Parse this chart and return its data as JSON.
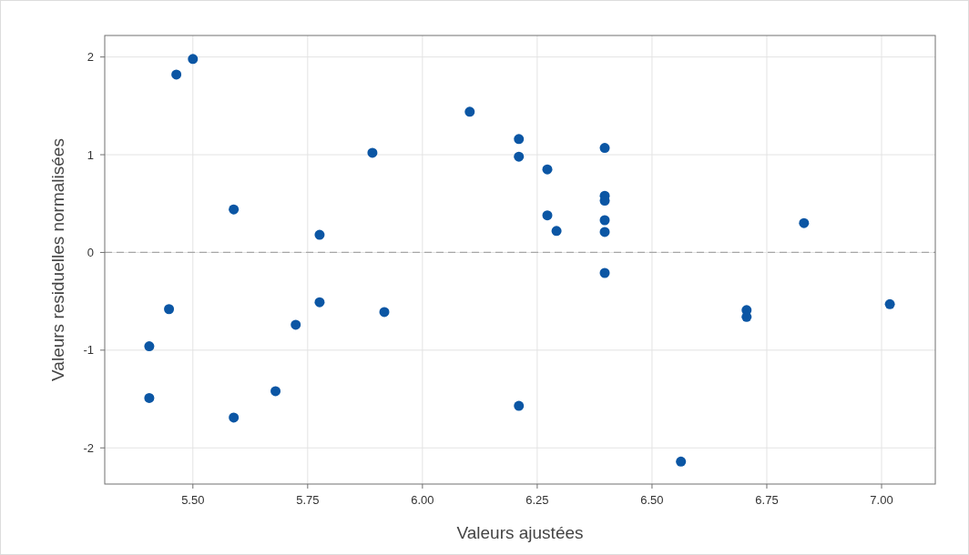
{
  "chart_data": {
    "type": "scatter",
    "xlabel": "Valeurs ajustées",
    "ylabel": "Valeurs residuelles normalisées",
    "xlim": [
      5.308,
      7.117
    ],
    "xticks": [
      {
        "value": 5.5,
        "label": "5.50"
      },
      {
        "value": 5.75,
        "label": "5.75"
      },
      {
        "value": 6,
        "label": "6.00"
      },
      {
        "value": 6.25,
        "label": "6.25"
      },
      {
        "value": 6.5,
        "label": "6.50"
      },
      {
        "value": 6.75,
        "label": "6.75"
      },
      {
        "value": 7,
        "label": "7.00"
      }
    ],
    "ylim": [
      -2.37,
      2.22
    ],
    "yticks": [
      -2,
      -1,
      0,
      1,
      2
    ],
    "grid": true,
    "marker": "circle",
    "ref_lines": [
      {
        "axis": "y",
        "value": 0,
        "color": "#a6a6a6",
        "line_style": "dashed"
      }
    ],
    "series": [
      {
        "color": "#0b56a4",
        "x": [
          5.405,
          5.405,
          5.464,
          5.5,
          5.448,
          5.589,
          5.589,
          5.68,
          5.724,
          5.776,
          5.776,
          5.891,
          5.917,
          6.103,
          6.21,
          6.21,
          6.21,
          6.272,
          6.272,
          6.292,
          6.397,
          6.397,
          6.397,
          6.397,
          6.397,
          6.397,
          6.563,
          6.706,
          6.706,
          6.831,
          7.018
        ],
        "values": [
          -0.96,
          -1.49,
          1.82,
          1.98,
          -0.58,
          0.44,
          -1.69,
          -1.42,
          -0.74,
          0.18,
          -0.51,
          1.02,
          -0.61,
          1.44,
          1.16,
          0.98,
          -1.57,
          0.85,
          0.38,
          0.22,
          1.07,
          0.58,
          0.53,
          0.33,
          0.21,
          -0.21,
          -2.14,
          -0.59,
          -0.66,
          0.3,
          -0.53
        ]
      }
    ]
  }
}
